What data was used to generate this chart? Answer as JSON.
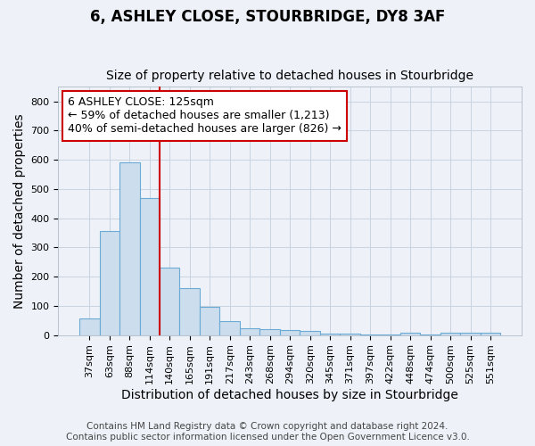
{
  "title_line1": "6, ASHLEY CLOSE, STOURBRIDGE, DY8 3AF",
  "title_line2": "Size of property relative to detached houses in Stourbridge",
  "xlabel": "Distribution of detached houses by size in Stourbridge",
  "ylabel": "Number of detached properties",
  "categories": [
    "37sqm",
    "63sqm",
    "88sqm",
    "114sqm",
    "140sqm",
    "165sqm",
    "191sqm",
    "217sqm",
    "243sqm",
    "268sqm",
    "294sqm",
    "320sqm",
    "345sqm",
    "371sqm",
    "397sqm",
    "422sqm",
    "448sqm",
    "474sqm",
    "500sqm",
    "525sqm",
    "551sqm"
  ],
  "values": [
    58,
    356,
    590,
    470,
    232,
    162,
    95,
    48,
    22,
    20,
    18,
    13,
    5,
    4,
    3,
    3,
    7,
    2,
    9,
    8,
    7
  ],
  "bar_color": "#ccdded",
  "bar_edge_color": "#6aaad4",
  "red_line_color": "#cc0000",
  "ylim_max": 850,
  "yticks": [
    0,
    100,
    200,
    300,
    400,
    500,
    600,
    700,
    800
  ],
  "annotation_title": "6 ASHLEY CLOSE: 125sqm",
  "annotation_line1": "← 59% of detached houses are smaller (1,213)",
  "annotation_line2": "40% of semi-detached houses are larger (826) →",
  "footer_line1": "Contains HM Land Registry data © Crown copyright and database right 2024.",
  "footer_line2": "Contains public sector information licensed under the Open Government Licence v3.0.",
  "bg_color": "#eef2f8",
  "grid_color": "#c8d4e0",
  "title_fontsize": 12,
  "subtitle_fontsize": 10,
  "axis_label_fontsize": 10,
  "tick_fontsize": 8,
  "annot_fontsize": 9,
  "footer_fontsize": 7.5
}
